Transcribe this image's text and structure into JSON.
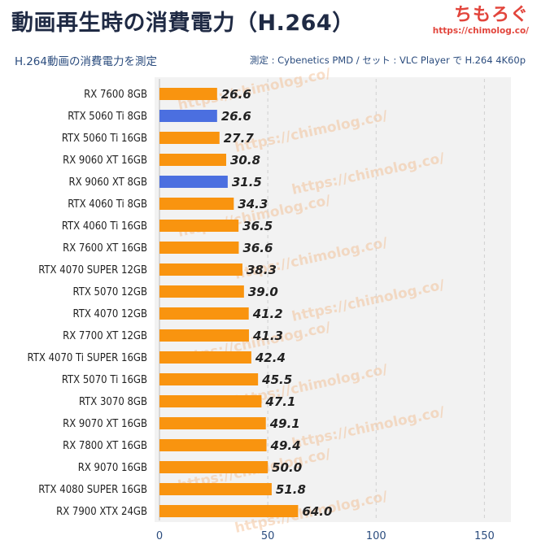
{
  "header": {
    "title": "動画再生時の消費電力（H.264）",
    "subtitle": "H.264動画の消費電力を測定",
    "note": "測定 : Cybenetics PMD / セット : VLC Player で H.264 4K60p",
    "brand_name": "ちもろぐ",
    "brand_url": "https://chimolog.co/"
  },
  "watermark_text": "https://chimolog.co/",
  "chart_data": {
    "type": "bar",
    "orientation": "horizontal",
    "categories": [
      "RX 7600 8GB",
      "RTX 5060 Ti 8GB",
      "RTX 5060 Ti 16GB",
      "RX 9060 XT 16GB",
      "RX 9060 XT 8GB",
      "RTX 4060 Ti 8GB",
      "RTX 4060 Ti 16GB",
      "RX 7600 XT 16GB",
      "RTX 4070 SUPER 12GB",
      "RTX 5070 12GB",
      "RTX 4070 12GB",
      "RX 7700 XT 12GB",
      "RTX 4070 Ti SUPER 16GB",
      "RTX 5070 Ti 16GB",
      "RTX 3070 8GB",
      "RX 9070 XT 16GB",
      "RX 7800 XT 16GB",
      "RX 9070 16GB",
      "RTX 4080 SUPER 16GB",
      "RX 7900 XTX 24GB"
    ],
    "values": [
      26.6,
      26.6,
      27.7,
      30.8,
      31.5,
      34.3,
      36.5,
      36.6,
      38.3,
      39.0,
      41.2,
      41.3,
      42.4,
      45.5,
      47.1,
      49.1,
      49.4,
      50.0,
      51.8,
      64.0
    ],
    "value_labels": [
      "26.6",
      "26.6",
      "27.7",
      "30.8",
      "31.5",
      "34.3",
      "36.5",
      "36.6",
      "38.3",
      "39.0",
      "41.2",
      "41.3",
      "42.4",
      "45.5",
      "47.1",
      "49.1",
      "49.4",
      "50.0",
      "51.8",
      "64.0"
    ],
    "highlighted": [
      false,
      true,
      false,
      false,
      true,
      false,
      false,
      false,
      false,
      false,
      false,
      false,
      false,
      false,
      false,
      false,
      false,
      false,
      false,
      false
    ],
    "xlim": [
      0,
      160
    ],
    "xticks": [
      0,
      50,
      100,
      150
    ],
    "xtick_labels": [
      "0",
      "50",
      "100",
      "150"
    ],
    "grid": "vertical-dashed",
    "colors": {
      "default": "#f9940f",
      "highlight": "#4b6fe0",
      "grid": "#cfcfcf",
      "plot_bg": "#f2f2f2"
    }
  }
}
